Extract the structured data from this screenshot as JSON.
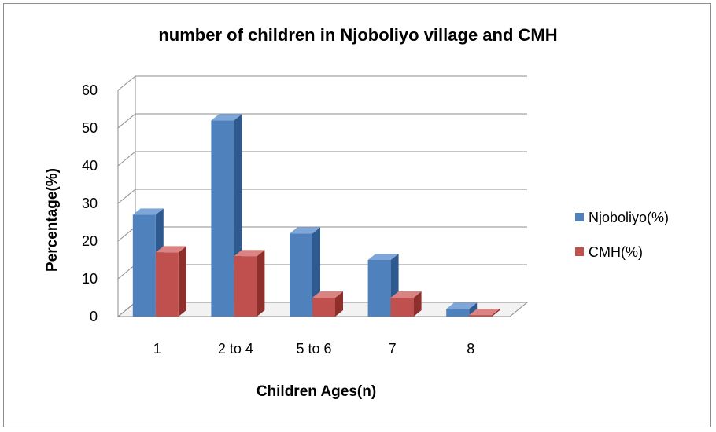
{
  "chart_data": {
    "type": "bar",
    "title": "number of children in Njoboliyo village and CMH",
    "xlabel": "Children Ages(n)",
    "ylabel": "Percentage(%)",
    "categories": [
      "1",
      "2 to 4",
      "5 to 6",
      "7",
      "8"
    ],
    "series": [
      {
        "name": "Njoboliyo(%)",
        "values": [
          27,
          52,
          22,
          15,
          2
        ],
        "color": "#4f81bd",
        "side": "#2f5a8f",
        "top": "#7ea6d8"
      },
      {
        "name": "CMH(%)",
        "values": [
          17,
          16,
          5,
          5,
          0.4
        ],
        "color": "#c0504d",
        "side": "#8e2f2c",
        "top": "#d98482"
      }
    ],
    "ylim": [
      0,
      60
    ],
    "yticks": [
      0,
      10,
      20,
      30,
      40,
      50,
      60
    ],
    "grid": true,
    "legend": "right",
    "three_d": true
  }
}
